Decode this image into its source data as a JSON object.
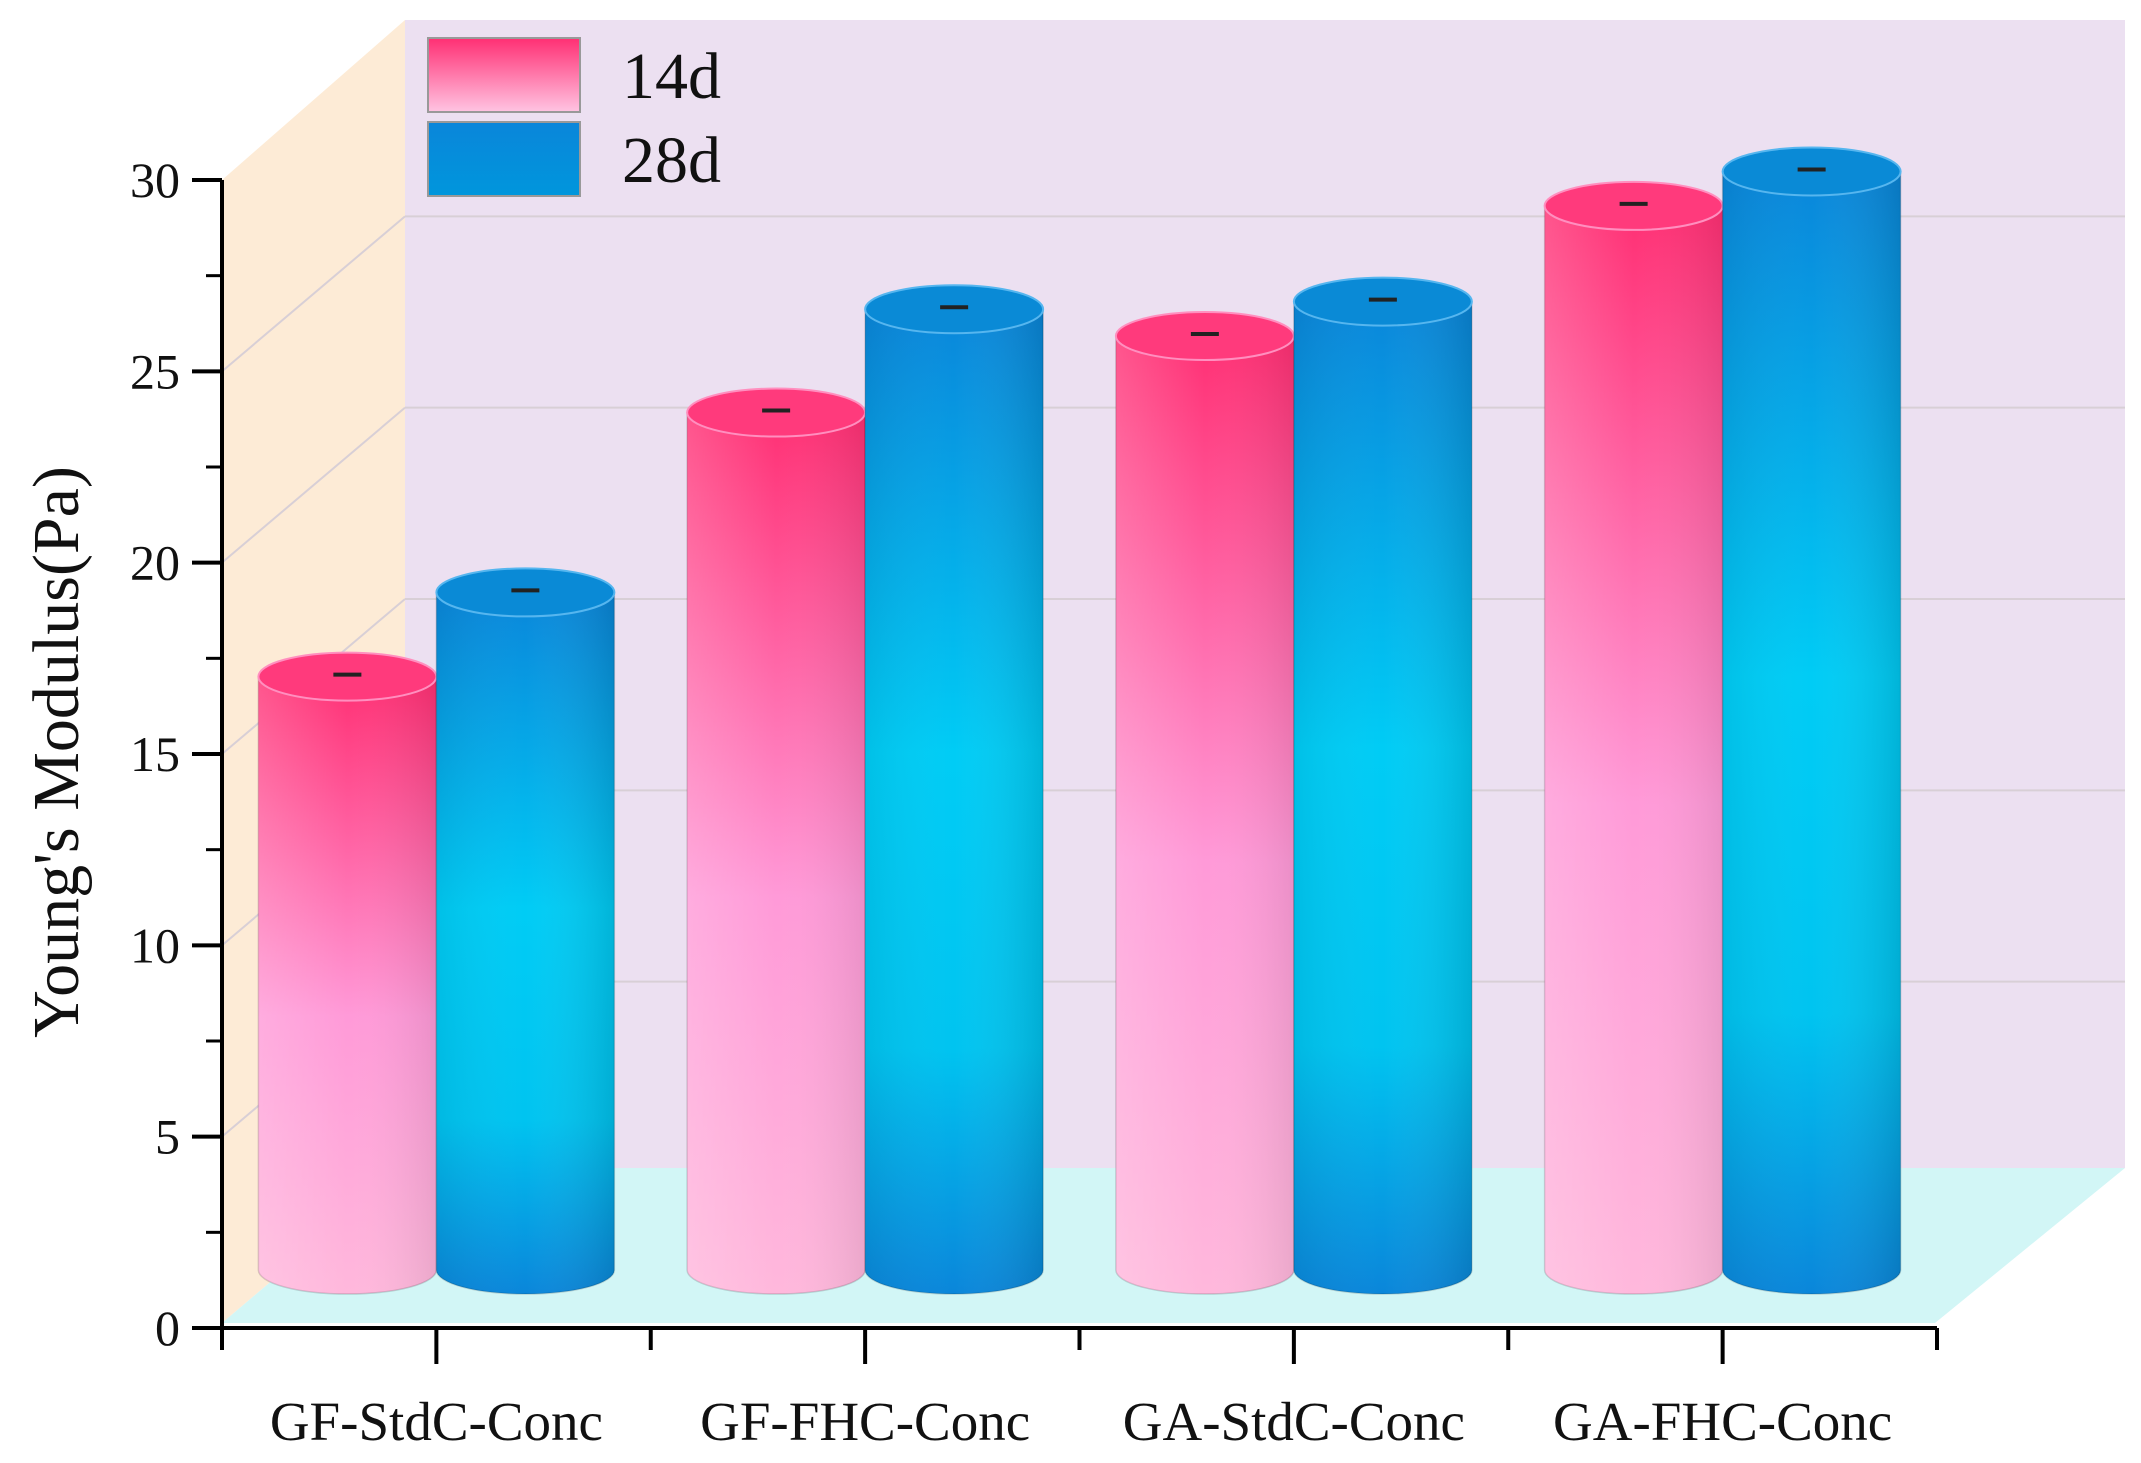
{
  "chart_data": {
    "type": "bar",
    "title": "",
    "xlabel": "",
    "ylabel": "Young's Modulus(Pa)",
    "ylim": [
      0,
      30
    ],
    "yticks": [
      0,
      5,
      10,
      15,
      20,
      25,
      30
    ],
    "categories": [
      "GF-StdC-Conc",
      "GF-FHC-Conc",
      "GA-StdC-Conc",
      "GA-FHC-Conc"
    ],
    "series": [
      {
        "name": "14d",
        "values": [
          16.5,
          23.4,
          25.4,
          28.8
        ]
      },
      {
        "name": "28d",
        "values": [
          18.7,
          26.1,
          26.3,
          29.7
        ]
      }
    ],
    "legend_position": "top-left",
    "grid": true,
    "style": "3d-cylinder"
  },
  "colors": {
    "series_14d_top": "#ff2f73",
    "series_14d_bottom": "#ffb8dc",
    "series_28d_top": "#0a86da",
    "series_28d_mid": "#00ccf5",
    "back_wall": "#ece0f1",
    "side_wall": "#fdebd6",
    "floor": "#d2f6f6"
  }
}
